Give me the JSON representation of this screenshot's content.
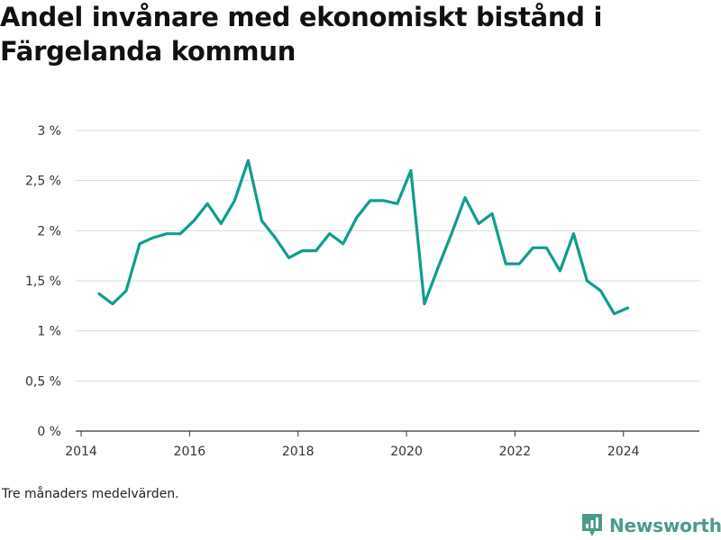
{
  "title": "Andel invånare med ekonomiskt bistånd i Färgelanda kommun",
  "note": "Tre månaders medelvärden.",
  "brand": {
    "name": "Newsworthy",
    "color": "#4c9a8c",
    "icon": "bar-chart-logo-icon"
  },
  "colors": {
    "line": "#0f9d8e",
    "grid": "#d9d9d9",
    "axis": "#333333"
  },
  "chart_data": {
    "type": "line",
    "title": "Andel invånare med ekonomiskt bistånd i Färgelanda kommun",
    "xlabel": "",
    "ylabel": "",
    "xlim": [
      2013.9,
      2025.4
    ],
    "ylim": [
      0,
      3
    ],
    "grid": true,
    "x_ticks": [
      2014,
      2016,
      2018,
      2020,
      2022,
      2024
    ],
    "x_tick_labels": [
      "2014",
      "2016",
      "2018",
      "2020",
      "2022",
      "2024"
    ],
    "y_ticks": [
      0,
      0.5,
      1,
      1.5,
      2,
      2.5,
      3
    ],
    "y_tick_labels": [
      "0 %",
      "0,5 %",
      "1 %",
      "1,5 %",
      "2 %",
      "2,5 %",
      "3 %"
    ],
    "series": [
      {
        "name": "",
        "x": [
          2014.33,
          2014.58,
          2014.83,
          2015.08,
          2015.33,
          2015.58,
          2015.83,
          2016.08,
          2016.33,
          2016.58,
          2016.83,
          2017.08,
          2017.33,
          2017.58,
          2017.83,
          2018.08,
          2018.33,
          2018.58,
          2018.83,
          2019.08,
          2019.33,
          2019.58,
          2019.83,
          2020.08,
          2020.33,
          2020.58,
          2020.83,
          2021.08,
          2021.33,
          2021.58,
          2021.83,
          2022.08,
          2022.33,
          2022.58,
          2022.83,
          2023.08,
          2023.33,
          2023.58,
          2023.83,
          2024.08
        ],
        "values": [
          1.37,
          1.27,
          1.4,
          1.87,
          1.93,
          1.97,
          1.97,
          2.1,
          2.27,
          2.07,
          2.3,
          2.7,
          2.1,
          1.93,
          1.73,
          1.8,
          1.8,
          1.97,
          1.87,
          2.13,
          2.3,
          2.3,
          2.27,
          2.6,
          1.27,
          1.63,
          1.97,
          2.33,
          2.07,
          2.17,
          1.67,
          1.67,
          1.83,
          1.83,
          1.6,
          1.97,
          1.5,
          1.4,
          1.17,
          1.23
        ]
      }
    ]
  }
}
